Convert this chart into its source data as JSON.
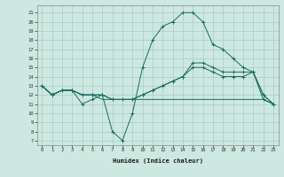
{
  "xlabel": "Humidex (Indice chaleur)",
  "xlim": [
    -0.5,
    23.5
  ],
  "ylim": [
    6.5,
    21.8
  ],
  "xticks": [
    0,
    1,
    2,
    3,
    4,
    5,
    6,
    7,
    8,
    9,
    10,
    11,
    12,
    13,
    14,
    15,
    16,
    17,
    18,
    19,
    20,
    21,
    22,
    23
  ],
  "yticks": [
    7,
    8,
    9,
    10,
    11,
    12,
    13,
    14,
    15,
    16,
    17,
    18,
    19,
    20,
    21
  ],
  "bg_color": "#cce8e0",
  "grid_color": "#aaccC4",
  "line_color": "#1a6b60",
  "series": [
    {
      "x": [
        0,
        1,
        2,
        3,
        4,
        5,
        6,
        7,
        8,
        9,
        10,
        11,
        12,
        13,
        14,
        15,
        16,
        17,
        18,
        19,
        20,
        21,
        22,
        23
      ],
      "y": [
        13,
        12,
        12.5,
        12.5,
        11,
        11.5,
        12,
        8,
        7,
        10,
        15,
        18,
        19.5,
        20,
        21,
        21,
        20,
        17.5,
        17,
        16,
        15,
        14.5,
        12,
        11
      ],
      "marker": "+"
    },
    {
      "x": [
        0,
        1,
        2,
        3,
        4,
        5,
        6,
        7,
        8,
        9,
        10,
        11,
        12,
        13,
        14,
        15,
        16,
        17,
        18,
        19,
        20,
        21,
        22,
        23
      ],
      "y": [
        13,
        12,
        12.5,
        12.5,
        12,
        12,
        12,
        11.5,
        11.5,
        11.5,
        12,
        12.5,
        13,
        13.5,
        14,
        15,
        15,
        14.5,
        14,
        14,
        14,
        14.5,
        11.5,
        11
      ],
      "marker": "+"
    },
    {
      "x": [
        0,
        1,
        2,
        3,
        4,
        5,
        6,
        7,
        8,
        9,
        10,
        11,
        12,
        13,
        14,
        15,
        16,
        17,
        18,
        19,
        20,
        21,
        22,
        23
      ],
      "y": [
        13,
        12,
        12.5,
        12.5,
        12,
        12,
        12,
        11.5,
        11.5,
        11.5,
        12,
        12.5,
        13,
        13.5,
        14,
        15.5,
        15.5,
        15,
        14.5,
        14.5,
        14.5,
        14.5,
        12,
        11
      ],
      "marker": "+"
    },
    {
      "x": [
        0,
        1,
        2,
        3,
        4,
        5,
        6,
        7,
        8,
        9,
        10,
        11,
        12,
        13,
        14,
        15,
        16,
        17,
        18,
        19,
        20,
        21,
        22,
        23
      ],
      "y": [
        13,
        12,
        12.5,
        12.5,
        12,
        12,
        11.5,
        11.5,
        11.5,
        11.5,
        11.5,
        11.5,
        11.5,
        11.5,
        11.5,
        11.5,
        11.5,
        11.5,
        11.5,
        11.5,
        11.5,
        11.5,
        11.5,
        11
      ],
      "marker": null
    }
  ]
}
